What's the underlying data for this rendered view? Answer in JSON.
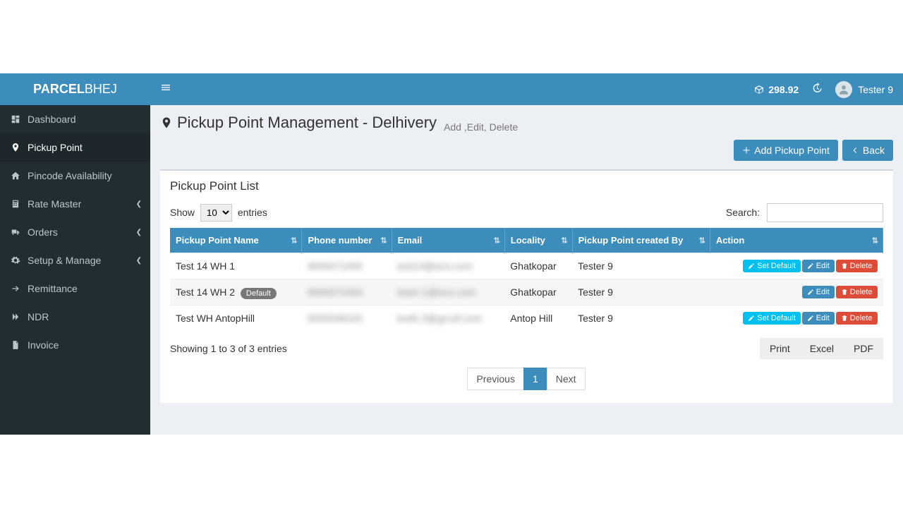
{
  "brand": {
    "bold": "PARCEL",
    "light": "BHEJ"
  },
  "topbar": {
    "balance": "298.92",
    "username": "Tester 9"
  },
  "sidebar": {
    "items": [
      {
        "icon": "dashboard",
        "label": "Dashboard",
        "active": false
      },
      {
        "icon": "marker",
        "label": "Pickup Point",
        "active": true
      },
      {
        "icon": "home",
        "label": "Pincode Availability",
        "active": false
      },
      {
        "icon": "calc",
        "label": "Rate Master",
        "chev": true
      },
      {
        "icon": "truck",
        "label": "Orders",
        "chev": true
      },
      {
        "icon": "cogs",
        "label": "Setup & Manage",
        "chev": true
      },
      {
        "icon": "arrow",
        "label": "Remittance"
      },
      {
        "icon": "forward",
        "label": "NDR"
      },
      {
        "icon": "file",
        "label": "Invoice"
      }
    ]
  },
  "page": {
    "title": "Pickup Point Management - Delhivery",
    "subtitle": "Add ,Edit, Delete",
    "add_btn": "Add Pickup Point",
    "back_btn": "Back",
    "panel_title": "Pickup Point List",
    "show_label_pre": "Show",
    "show_label_post": "entries",
    "show_value": "10",
    "search_label": "Search:",
    "columns": [
      "Pickup Point Name",
      "Phone number",
      "Email",
      "Locality",
      "Pickup Point created By",
      "Action"
    ],
    "rows": [
      {
        "name": "Test 14 WH 1",
        "phone": "9000071000",
        "email": "test14@wcs.com",
        "locality": "Ghatkopar",
        "created_by": "Tester 9",
        "is_default": false,
        "can_set_default": true
      },
      {
        "name": "Test 14 WH 2",
        "phone": "9000071004",
        "email": "testrr.1@wcs.com",
        "locality": "Ghatkopar",
        "created_by": "Tester 9",
        "is_default": true,
        "can_set_default": false
      },
      {
        "name": "Test WH AntopHill",
        "phone": "9000048100",
        "email": "testh.3@grcull.com",
        "locality": "Antop Hill",
        "created_by": "Tester 9",
        "is_default": false,
        "can_set_default": true
      }
    ],
    "default_badge": "Default",
    "action_labels": {
      "set_default": "Set Default",
      "edit": "Edit",
      "delete": "Delete"
    },
    "info_text": "Showing 1 to 3 of 3 entries",
    "export": {
      "print": "Print",
      "excel": "Excel",
      "pdf": "PDF"
    },
    "pagination": {
      "prev": "Previous",
      "current": "1",
      "next": "Next"
    }
  },
  "colors": {
    "brand_blue": "#3c8dbc",
    "sidebar_bg": "#222d32",
    "info": "#00c0ef",
    "danger": "#dd4b39",
    "content_bg": "#ecf0f5"
  }
}
